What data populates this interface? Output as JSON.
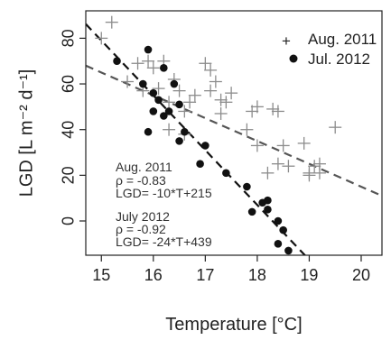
{
  "chart_data": {
    "type": "scatter",
    "xlabel": "Temperature [°C]",
    "ylabel": "LGD [L m⁻² d⁻¹]",
    "xlim": [
      14.7,
      20.4
    ],
    "ylim": [
      -15,
      92
    ],
    "x_ticks": [
      15,
      16,
      17,
      18,
      19,
      20
    ],
    "y_ticks": [
      0,
      20,
      40,
      60,
      80
    ],
    "legend_position": "top-right",
    "series": [
      {
        "name": "Aug. 2011",
        "marker": "plus",
        "color": "#8c8c8c",
        "points": [
          [
            15.0,
            80
          ],
          [
            15.2,
            87
          ],
          [
            15.5,
            61
          ],
          [
            15.7,
            69
          ],
          [
            15.8,
            57
          ],
          [
            15.9,
            70
          ],
          [
            16.0,
            67
          ],
          [
            16.1,
            58
          ],
          [
            16.2,
            70
          ],
          [
            16.3,
            52
          ],
          [
            16.3,
            40
          ],
          [
            16.4,
            62
          ],
          [
            16.5,
            57
          ],
          [
            16.6,
            48
          ],
          [
            16.6,
            38
          ],
          [
            16.7,
            52
          ],
          [
            16.8,
            55
          ],
          [
            17.0,
            69
          ],
          [
            17.1,
            66
          ],
          [
            17.1,
            57
          ],
          [
            17.2,
            61
          ],
          [
            17.3,
            47
          ],
          [
            17.3,
            53
          ],
          [
            17.4,
            52
          ],
          [
            17.5,
            56
          ],
          [
            17.8,
            40
          ],
          [
            17.9,
            48
          ],
          [
            18.0,
            33
          ],
          [
            18.0,
            50
          ],
          [
            18.2,
            21
          ],
          [
            18.3,
            49
          ],
          [
            18.4,
            48
          ],
          [
            18.4,
            25
          ],
          [
            18.5,
            33
          ],
          [
            18.6,
            24
          ],
          [
            18.9,
            34
          ],
          [
            19.0,
            21
          ],
          [
            19.0,
            20
          ],
          [
            19.1,
            24
          ],
          [
            19.2,
            25
          ],
          [
            19.2,
            21
          ],
          [
            19.5,
            41
          ]
        ]
      },
      {
        "name": "Jul. 2012",
        "marker": "dot",
        "color": "#111111",
        "points": [
          [
            15.3,
            70
          ],
          [
            15.8,
            60
          ],
          [
            15.9,
            75
          ],
          [
            15.9,
            39
          ],
          [
            16.0,
            48
          ],
          [
            16.0,
            56
          ],
          [
            16.1,
            53
          ],
          [
            16.2,
            46
          ],
          [
            16.2,
            67
          ],
          [
            16.3,
            48
          ],
          [
            16.4,
            60
          ],
          [
            16.5,
            51
          ],
          [
            16.5,
            35
          ],
          [
            16.6,
            39
          ],
          [
            16.9,
            25
          ],
          [
            17.0,
            33
          ],
          [
            17.4,
            21
          ],
          [
            17.8,
            15
          ],
          [
            17.9,
            4
          ],
          [
            18.1,
            8
          ],
          [
            18.2,
            5
          ],
          [
            18.2,
            9
          ],
          [
            18.4,
            0
          ],
          [
            18.4,
            -10
          ],
          [
            18.5,
            -4
          ],
          [
            18.6,
            -13
          ]
        ]
      }
    ],
    "fit_lines": [
      {
        "series": "Aug. 2011",
        "slope": -10,
        "intercept": 215,
        "color": "#555555"
      },
      {
        "series": "Jul. 2012",
        "slope": -24,
        "intercept": 439,
        "color": "#111111"
      }
    ],
    "annotations": [
      {
        "lines": [
          "Aug. 2011",
          "ρ = -0.83",
          "LGD= -10*T+215"
        ]
      },
      {
        "lines": [
          "July 2012",
          "ρ = -0.92",
          "LGD= -24*T+439"
        ]
      }
    ]
  }
}
